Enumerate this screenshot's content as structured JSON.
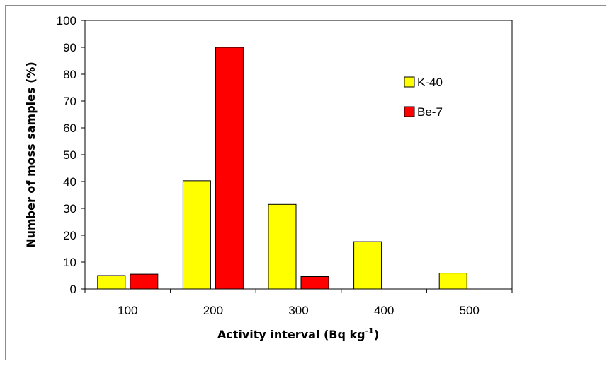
{
  "chart_data": {
    "type": "bar",
    "categories": [
      "100",
      "200",
      "300",
      "400",
      "500"
    ],
    "series": [
      {
        "name": "K-40",
        "color": "#ffff00",
        "values": [
          5,
          40.3,
          31.5,
          17.6,
          5.9
        ]
      },
      {
        "name": "Be-7",
        "color": "#ff0000",
        "values": [
          5.5,
          90,
          4.6,
          0,
          0
        ]
      }
    ],
    "xlabel": "Activity interval (Bq kg",
    "xlabel_sup": "-1",
    "xlabel_tail": ")",
    "ylabel": "Number of moss samples (%)",
    "ylim": [
      0,
      100
    ],
    "yticks": [
      "0",
      "10",
      "20",
      "30",
      "40",
      "50",
      "60",
      "70",
      "80",
      "90",
      "100"
    ],
    "grid": false,
    "legend_position": "top-right"
  }
}
